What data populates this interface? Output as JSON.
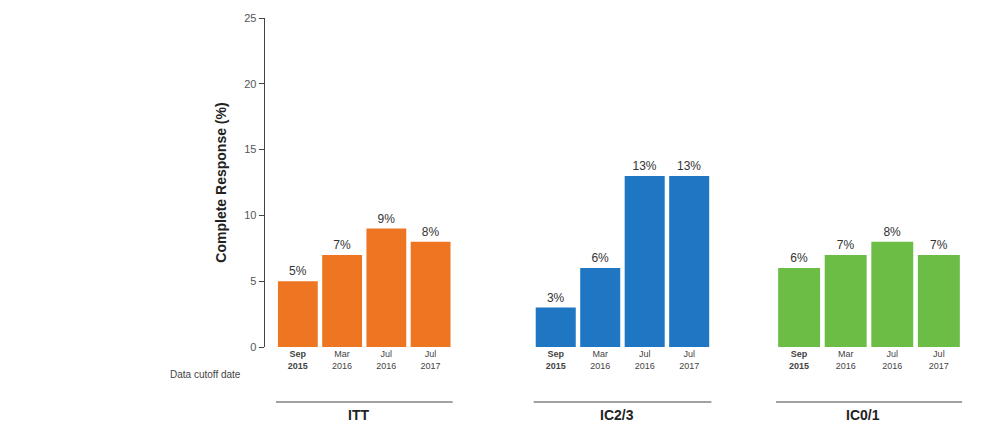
{
  "chart_data": [
    {
      "type": "bar",
      "x_label": "ITT",
      "y_label": "Complete Response (%)",
      "annotations": [
        "Data cutoff date"
      ],
      "categories": [
        "Sep 2015",
        "Mar 2016",
        "Jul 2016",
        "Jul 2017"
      ],
      "values": [
        5,
        7,
        9,
        8
      ],
      "value_labels": [
        "5%",
        "7%",
        "9%",
        "8%"
      ],
      "color": "#ee7623",
      "data_labels": true,
      "ylim": [
        0,
        25
      ],
      "yticks": [
        0,
        5,
        10,
        15,
        20,
        25
      ]
    },
    {
      "type": "bar",
      "x_label": "IC2/3",
      "categories": [
        "Sep 2015",
        "Mar 2016",
        "Jul 2016",
        "Jul 2017"
      ],
      "values": [
        3,
        6,
        13,
        13
      ],
      "value_labels": [
        "3%",
        "6%",
        "13%",
        "13%"
      ],
      "color": "#1f76c2",
      "data_labels": true,
      "tick_labels": "x",
      "ylim": [
        0,
        25
      ],
      "yticks": [
        0,
        5,
        10,
        15,
        20,
        25
      ]
    },
    {
      "type": "bar",
      "x_label": "IC0/1",
      "categories": [
        "Sep 2015",
        "Mar 2016",
        "Jul 2016",
        "Jul 2017"
      ],
      "values": [
        6,
        7,
        8,
        7
      ],
      "value_labels": [
        "6%",
        "7%",
        "8%",
        "7%"
      ],
      "color": "#6cbd45",
      "data_labels": true,
      "tick_labels": "x",
      "ylim": [
        0,
        25
      ],
      "yticks": [
        0,
        5,
        10,
        15,
        20,
        25
      ]
    }
  ]
}
